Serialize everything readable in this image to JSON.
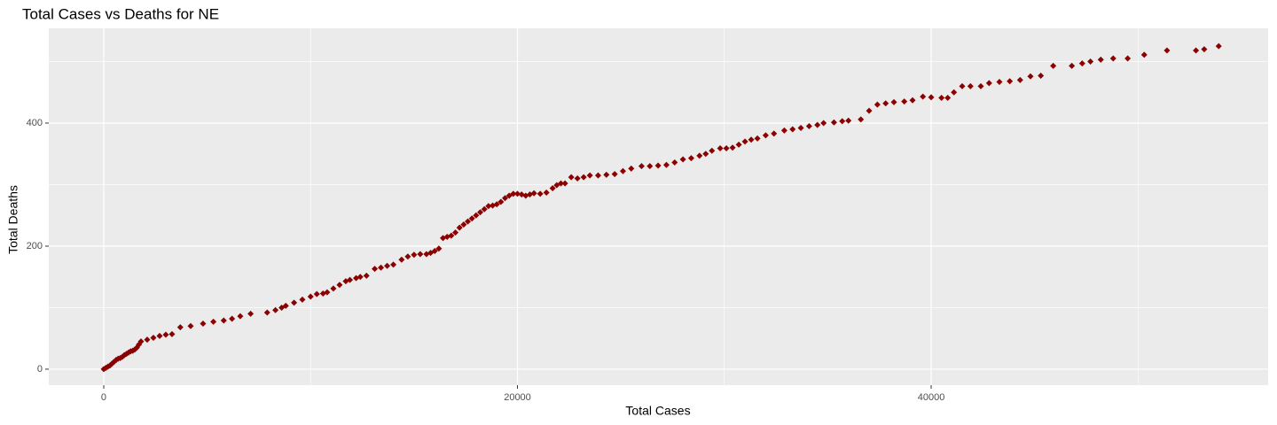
{
  "chart_data": {
    "type": "scatter",
    "title": "Total Cases vs Deaths for NE",
    "x_label": "Total Cases",
    "y_label": "Total Deaths",
    "color": "#8b0000",
    "xlim": [
      -2658,
      56290
    ],
    "ylim": [
      -26,
      554
    ],
    "xticks": [
      0,
      20000,
      40000
    ],
    "yticks": [
      0,
      200,
      400
    ],
    "x_minor_grid": [
      10000,
      30000,
      50000
    ],
    "y_minor_grid": [
      100,
      300,
      500
    ],
    "grid": true,
    "x": [
      0,
      100,
      200,
      300,
      400,
      500,
      600,
      700,
      800,
      900,
      1000,
      1100,
      1200,
      1300,
      1400,
      1500,
      1600,
      1700,
      1800,
      2100,
      2400,
      2700,
      3000,
      3300,
      3700,
      4200,
      4800,
      5300,
      5800,
      6200,
      6600,
      7100,
      7900,
      8300,
      8600,
      8800,
      9200,
      9600,
      10000,
      10300,
      10600,
      10800,
      11100,
      11400,
      11700,
      11900,
      12200,
      12400,
      12700,
      13100,
      13400,
      13700,
      14000,
      14400,
      14700,
      15000,
      15300,
      15600,
      15800,
      16000,
      16200,
      16400,
      16600,
      16800,
      17000,
      17200,
      17400,
      17600,
      17800,
      18000,
      18200,
      18400,
      18600,
      18800,
      19000,
      19200,
      19400,
      19600,
      19800,
      20000,
      20200,
      20400,
      20600,
      20800,
      21100,
      21400,
      21700,
      21900,
      22100,
      22300,
      22600,
      22900,
      23200,
      23500,
      23900,
      24300,
      24700,
      25100,
      25500,
      26000,
      26400,
      26800,
      27200,
      27600,
      28000,
      28400,
      28800,
      29100,
      29400,
      29800,
      30100,
      30400,
      30700,
      31000,
      31300,
      31600,
      32000,
      32400,
      32900,
      33300,
      33700,
      34100,
      34500,
      34800,
      35300,
      35700,
      36000,
      36600,
      37000,
      37400,
      37800,
      38200,
      38700,
      39100,
      39600,
      40000,
      40500,
      40800,
      41100,
      41500,
      41900,
      42400,
      42800,
      43300,
      43800,
      44300,
      44800,
      45300,
      45900,
      46800,
      47300,
      47700,
      48200,
      48800,
      49500,
      50300,
      51400,
      52800,
      53200,
      53900
    ],
    "values": [
      0,
      2,
      4,
      6,
      9,
      12,
      15,
      17,
      18,
      20,
      23,
      25,
      27,
      29,
      30,
      32,
      35,
      40,
      45,
      48,
      51,
      54,
      56,
      57,
      68,
      70,
      74,
      77,
      79,
      82,
      86,
      90,
      92,
      96,
      100,
      103,
      108,
      113,
      118,
      122,
      123,
      125,
      131,
      137,
      143,
      145,
      148,
      150,
      152,
      163,
      165,
      168,
      170,
      178,
      183,
      186,
      187,
      187,
      189,
      192,
      196,
      213,
      215,
      217,
      222,
      230,
      235,
      240,
      245,
      250,
      255,
      260,
      265,
      266,
      268,
      272,
      278,
      282,
      285,
      285,
      284,
      282,
      284,
      286,
      285,
      287,
      294,
      299,
      302,
      302,
      312,
      310,
      312,
      315,
      315,
      316,
      317,
      322,
      326,
      330,
      330,
      331,
      332,
      336,
      341,
      343,
      347,
      350,
      355,
      359,
      359,
      360,
      365,
      370,
      373,
      375,
      380,
      383,
      388,
      390,
      392,
      395,
      397,
      400,
      401,
      403,
      404,
      406,
      420,
      430,
      432,
      434,
      435,
      437,
      443,
      442,
      441,
      441,
      450,
      460,
      460,
      460,
      465,
      467,
      468,
      470,
      476,
      477,
      493,
      493,
      497,
      500,
      503,
      505,
      505,
      511,
      518,
      518,
      520,
      525
    ]
  }
}
